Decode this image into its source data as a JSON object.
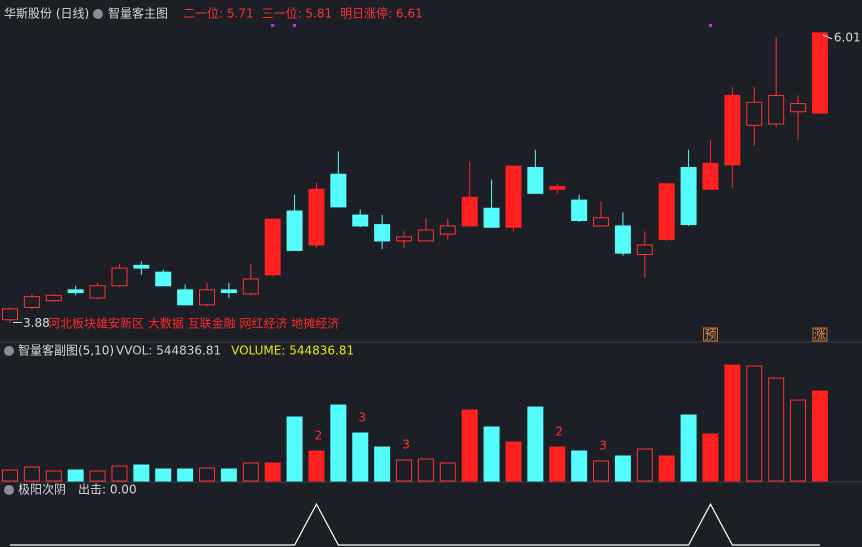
{
  "header": {
    "stock": "华斯股份 (日线)"
  },
  "chart_data": [
    {
      "type": "candlestick",
      "title": "智量客主图",
      "readouts": [
        "二一位: 5.71",
        "三一位: 5.81",
        "明日涨停: 6.61"
      ],
      "open": [
        3.9,
        3.99,
        4.04,
        4.12,
        4.06,
        4.15,
        4.3,
        4.25,
        4.12,
        4.01,
        4.12,
        4.09,
        4.23,
        4.7,
        4.45,
        4.97,
        4.67,
        4.6,
        4.48,
        4.48,
        4.53,
        4.59,
        4.72,
        4.58,
        5.02,
        4.86,
        4.78,
        4.59,
        4.59,
        4.38,
        4.49,
        5.02,
        4.86,
        5.04,
        5.33,
        5.34,
        5.43,
        5.42
      ],
      "high": [
        3.99,
        4.09,
        4.09,
        4.15,
        4.17,
        4.31,
        4.33,
        4.27,
        4.16,
        4.17,
        4.17,
        4.31,
        4.64,
        4.82,
        4.91,
        5.14,
        4.71,
        4.67,
        4.55,
        4.64,
        4.64,
        5.06,
        4.93,
        5.03,
        5.15,
        4.9,
        4.82,
        4.77,
        4.69,
        4.55,
        4.9,
        5.15,
        5.22,
        5.61,
        5.61,
        5.98,
        5.55,
        6.01
      ],
      "low": [
        3.88,
        3.98,
        4.03,
        4.08,
        4.05,
        4.14,
        4.23,
        4.15,
        4.01,
        4.0,
        4.06,
        4.08,
        4.22,
        4.41,
        4.43,
        4.73,
        4.58,
        4.42,
        4.43,
        4.48,
        4.49,
        4.59,
        4.58,
        4.55,
        4.83,
        4.82,
        4.62,
        4.59,
        4.37,
        4.21,
        4.48,
        4.59,
        4.86,
        4.87,
        5.18,
        5.32,
        5.22,
        5.42
      ],
      "close": [
        3.98,
        4.07,
        4.08,
        4.1,
        4.15,
        4.28,
        4.28,
        4.15,
        4.01,
        4.12,
        4.1,
        4.2,
        4.64,
        4.41,
        4.86,
        4.73,
        4.59,
        4.48,
        4.51,
        4.56,
        4.59,
        4.8,
        4.58,
        5.03,
        4.83,
        4.88,
        4.63,
        4.65,
        4.39,
        4.45,
        4.9,
        4.6,
        5.05,
        5.55,
        5.5,
        5.55,
        5.49,
        6.01
      ],
      "fills": [
        "none",
        "none",
        "none",
        "#54fcfc",
        "none",
        "none",
        "#54fcfc",
        "#54fcfc",
        "#54fcfc",
        "none",
        "#54fcfc",
        "none",
        "#ff2020",
        "#54fcfc",
        "#ff2020",
        "#54fcfc",
        "#54fcfc",
        "#54fcfc",
        "none",
        "none",
        "none",
        "#ff2020",
        "#54fcfc",
        "#ff2020",
        "#54fcfc",
        "#ff2020",
        "#54fcfc",
        "none",
        "#54fcfc",
        "none",
        "#ff2020",
        "#54fcfc",
        "#ff2020",
        "#ff2020",
        "none",
        "none",
        "none",
        "#ff2020"
      ],
      "up_color": "#ff3232",
      "ylim": [
        3.81,
        6.09
      ],
      "signal_dots": [
        12,
        13,
        32
      ],
      "concepts": "河北板块雄安新区 大数据 互联金融 网红经济 地摊经济",
      "tags": [
        {
          "index": 32,
          "text": "预"
        },
        {
          "index": 37,
          "text": "涨"
        }
      ]
    },
    {
      "type": "bar",
      "title": "智量客副图(5,10)",
      "readouts": [
        {
          "text": "VVOL: 544836.81",
          "color": "#d0d0d0"
        },
        {
          "text": "VOLUME: 544836.81",
          "color": "#e8e800"
        }
      ],
      "values": [
        66600,
        84800,
        60500,
        66600,
        60500,
        90800,
        96900,
        72600,
        72600,
        78700,
        72600,
        109000,
        109000,
        387500,
        181600,
        460100,
        290600,
        205800,
        127100,
        133200,
        109000,
        429800,
        326900,
        236100,
        448000,
        205800,
        181600,
        121100,
        151400,
        193700,
        151400,
        399600,
        284500,
        702300,
        696200,
        623600,
        490400,
        544836.81
      ],
      "ylim": [
        0,
        745000
      ],
      "markers": [
        {
          "index": 14,
          "text": "2"
        },
        {
          "index": 16,
          "text": "3"
        },
        {
          "index": 18,
          "text": "3"
        },
        {
          "index": 25,
          "text": "2"
        },
        {
          "index": 27,
          "text": "3"
        }
      ]
    },
    {
      "type": "line",
      "title": "极阳次阴",
      "readout": "出击: 0.00",
      "color": "#ffffff",
      "values": [
        0,
        0,
        0,
        0,
        0,
        0,
        0,
        0,
        0,
        0,
        0,
        0,
        0,
        0,
        1,
        0,
        0,
        0,
        0,
        0,
        0,
        0,
        0,
        0,
        0,
        0,
        0,
        0,
        0,
        0,
        0,
        0,
        1,
        0,
        0,
        0,
        0,
        0
      ],
      "ylim": [
        0,
        1.2
      ]
    }
  ]
}
